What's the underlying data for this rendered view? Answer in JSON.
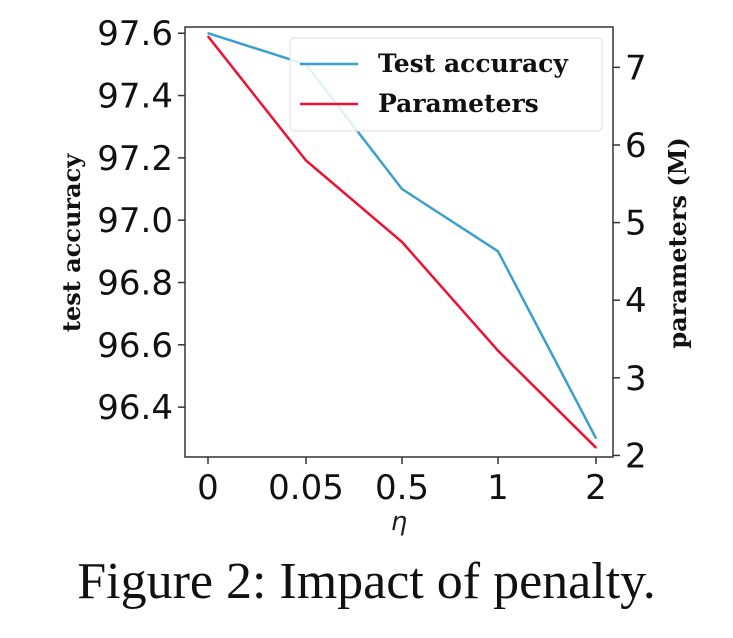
{
  "caption": "Figure 2: Impact of penalty.",
  "chart_data": {
    "type": "line",
    "categories": [
      "0",
      "0.05",
      "0.5",
      "1",
      "2"
    ],
    "xlabel": "η",
    "ylabel": "test accuracy",
    "y2label": "parameters (M)",
    "ylim": [
      96.24,
      97.62
    ],
    "y_ticks": [
      "96.4",
      "96.6",
      "96.8",
      "97.0",
      "97.2",
      "97.4",
      "97.6"
    ],
    "y2lim": [
      1.98,
      7.52
    ],
    "y2_ticks": [
      "2",
      "3",
      "4",
      "5",
      "6",
      "7"
    ],
    "legend_position": "top-right",
    "series": [
      {
        "name": "Test accuracy",
        "axis": "left",
        "color": "#3a9fcf",
        "values": [
          97.6,
          97.5,
          97.1,
          96.9,
          96.3
        ]
      },
      {
        "name": "Parameters",
        "axis": "right",
        "color": "#ee1133",
        "values": [
          7.4,
          5.8,
          4.75,
          3.35,
          2.1
        ]
      }
    ]
  }
}
